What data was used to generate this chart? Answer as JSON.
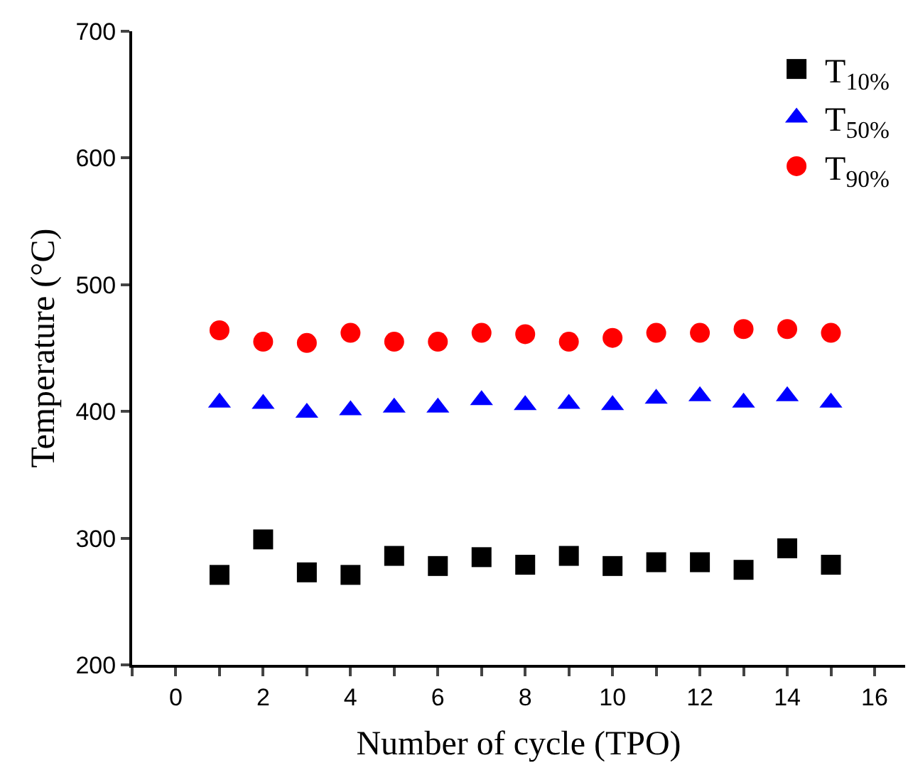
{
  "chart_data": {
    "type": "scatter",
    "xlabel": "Number of cycle (TPO)",
    "ylabel": "Temperature (°C)",
    "x": [
      1,
      2,
      3,
      4,
      5,
      6,
      7,
      8,
      9,
      10,
      11,
      12,
      13,
      14,
      15
    ],
    "series": [
      {
        "name": "T$_{10%}$",
        "color": "#000000",
        "marker": "square",
        "values": [
          271,
          299,
          273,
          271,
          286,
          278,
          285,
          279,
          286,
          278,
          281,
          281,
          275,
          292,
          279
        ]
      },
      {
        "name": "T$_{50%}$",
        "color": "#0000ff",
        "marker": "triangle",
        "values": [
          407,
          406,
          399,
          401,
          403,
          403,
          409,
          405,
          406,
          405,
          410,
          412,
          407,
          412,
          407
        ]
      },
      {
        "name": "T$_{90%}$",
        "color": "#ff0000",
        "marker": "circle",
        "values": [
          464,
          455,
          454,
          462,
          455,
          455,
          462,
          461,
          455,
          458,
          462,
          462,
          465,
          465,
          462
        ]
      }
    ],
    "xlim": [
      -1,
      16.7
    ],
    "xticks": [
      {
        "value": -1,
        "label": null
      },
      0,
      {
        "value": 1,
        "label": null
      },
      2,
      {
        "value": 3,
        "label": null
      },
      4,
      {
        "value": 5,
        "label": null
      },
      6,
      {
        "value": 7,
        "label": null
      },
      8,
      {
        "value": 9,
        "label": null
      },
      10,
      {
        "value": 11,
        "label": null
      },
      12,
      {
        "value": 13,
        "label": null
      },
      14,
      {
        "value": 15,
        "label": null
      },
      16
    ],
    "ylim": [
      200,
      700
    ],
    "yticks": [
      200,
      300,
      400,
      500,
      600,
      700
    ],
    "legend": "top right"
  }
}
